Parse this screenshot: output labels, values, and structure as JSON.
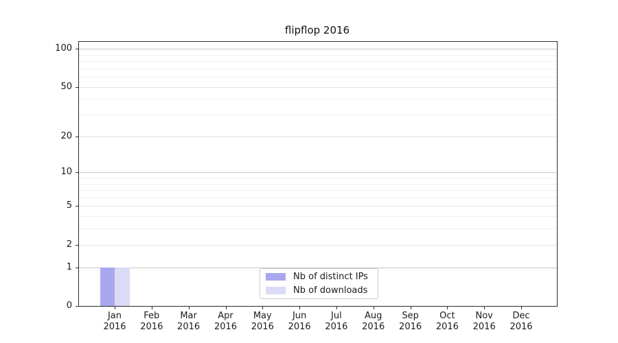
{
  "chart": {
    "background": "#ffffff",
    "text_color": "#1a1a1a",
    "spine_color": "#2b2b2b",
    "grid_decade_color": "#c6c6c6",
    "grid_labeled_color": "#e3e3e3",
    "grid_minor_color": "#efefef"
  },
  "chart_data": {
    "type": "bar",
    "title": "flipflop 2016",
    "xlabel": "",
    "ylabel": "",
    "categories": [
      "Jan 2016",
      "Feb 2016",
      "Mar 2016",
      "Apr 2016",
      "May 2016",
      "Jun 2016",
      "Jul 2016",
      "Aug 2016",
      "Sep 2016",
      "Oct 2016",
      "Nov 2016",
      "Dec 2016"
    ],
    "series": [
      {
        "name": "Nb of distinct IPs",
        "color": "#a8a8f0",
        "values": [
          1,
          0,
          0,
          0,
          0,
          0,
          0,
          0,
          0,
          0,
          0,
          0
        ]
      },
      {
        "name": "Nb of downloads",
        "color": "#dbdbf7",
        "values": [
          1,
          0,
          0,
          0,
          0,
          0,
          0,
          0,
          0,
          0,
          0,
          0
        ]
      }
    ],
    "y_axis": {
      "scale": "log1p",
      "ylim": [
        0,
        113
      ],
      "major_ticks": [
        0,
        1,
        2,
        5,
        10,
        20,
        50,
        100
      ],
      "decade_lines": [
        1,
        10,
        100
      ],
      "minor_gridlines": [
        3,
        4,
        6,
        7,
        8,
        9,
        30,
        40,
        60,
        70,
        80,
        90
      ]
    },
    "legend": {
      "position": "lower center",
      "entries": [
        "Nb of distinct IPs",
        "Nb of downloads"
      ]
    }
  }
}
